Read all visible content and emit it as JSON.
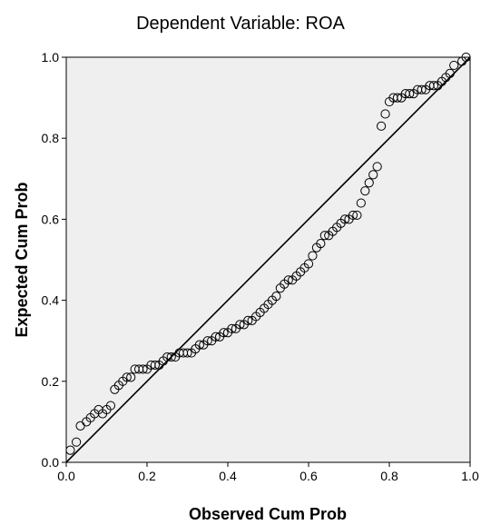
{
  "chart_data": {
    "type": "scatter",
    "title": "Dependent Variable: ROA",
    "xlabel": "Observed Cum Prob",
    "ylabel": "Expected Cum Prob",
    "xlim": [
      0.0,
      1.0
    ],
    "ylim": [
      0.0,
      1.0
    ],
    "x_ticks": [
      "0.0",
      "0.2",
      "0.4",
      "0.6",
      "0.8",
      "1.0"
    ],
    "y_ticks": [
      "0.0",
      "0.2",
      "0.4",
      "0.6",
      "0.8",
      "1.0"
    ],
    "grid": false,
    "reference_line": [
      [
        0,
        0
      ],
      [
        1,
        1
      ]
    ],
    "colors": {
      "plot_background": "#efefef",
      "marker_stroke": "#000000",
      "line": "#000000"
    },
    "points": [
      [
        0.01,
        0.03
      ],
      [
        0.025,
        0.05
      ],
      [
        0.035,
        0.09
      ],
      [
        0.05,
        0.1
      ],
      [
        0.06,
        0.11
      ],
      [
        0.07,
        0.12
      ],
      [
        0.08,
        0.13
      ],
      [
        0.09,
        0.12
      ],
      [
        0.1,
        0.13
      ],
      [
        0.11,
        0.14
      ],
      [
        0.12,
        0.18
      ],
      [
        0.13,
        0.19
      ],
      [
        0.14,
        0.2
      ],
      [
        0.15,
        0.21
      ],
      [
        0.16,
        0.21
      ],
      [
        0.17,
        0.23
      ],
      [
        0.18,
        0.23
      ],
      [
        0.19,
        0.23
      ],
      [
        0.2,
        0.23
      ],
      [
        0.21,
        0.24
      ],
      [
        0.22,
        0.24
      ],
      [
        0.23,
        0.24
      ],
      [
        0.24,
        0.25
      ],
      [
        0.25,
        0.26
      ],
      [
        0.26,
        0.26
      ],
      [
        0.27,
        0.26
      ],
      [
        0.28,
        0.27
      ],
      [
        0.29,
        0.27
      ],
      [
        0.3,
        0.27
      ],
      [
        0.31,
        0.27
      ],
      [
        0.32,
        0.28
      ],
      [
        0.33,
        0.29
      ],
      [
        0.34,
        0.29
      ],
      [
        0.35,
        0.3
      ],
      [
        0.36,
        0.3
      ],
      [
        0.37,
        0.31
      ],
      [
        0.38,
        0.31
      ],
      [
        0.39,
        0.32
      ],
      [
        0.4,
        0.32
      ],
      [
        0.41,
        0.33
      ],
      [
        0.42,
        0.33
      ],
      [
        0.43,
        0.34
      ],
      [
        0.44,
        0.34
      ],
      [
        0.45,
        0.35
      ],
      [
        0.46,
        0.35
      ],
      [
        0.47,
        0.36
      ],
      [
        0.48,
        0.37
      ],
      [
        0.49,
        0.38
      ],
      [
        0.5,
        0.39
      ],
      [
        0.51,
        0.4
      ],
      [
        0.52,
        0.41
      ],
      [
        0.53,
        0.43
      ],
      [
        0.54,
        0.44
      ],
      [
        0.55,
        0.45
      ],
      [
        0.56,
        0.45
      ],
      [
        0.57,
        0.46
      ],
      [
        0.58,
        0.47
      ],
      [
        0.59,
        0.48
      ],
      [
        0.6,
        0.49
      ],
      [
        0.61,
        0.51
      ],
      [
        0.62,
        0.53
      ],
      [
        0.63,
        0.54
      ],
      [
        0.64,
        0.56
      ],
      [
        0.65,
        0.56
      ],
      [
        0.66,
        0.57
      ],
      [
        0.67,
        0.58
      ],
      [
        0.68,
        0.59
      ],
      [
        0.69,
        0.6
      ],
      [
        0.7,
        0.6
      ],
      [
        0.71,
        0.61
      ],
      [
        0.72,
        0.61
      ],
      [
        0.73,
        0.64
      ],
      [
        0.74,
        0.67
      ],
      [
        0.75,
        0.69
      ],
      [
        0.76,
        0.71
      ],
      [
        0.77,
        0.73
      ],
      [
        0.78,
        0.83
      ],
      [
        0.79,
        0.86
      ],
      [
        0.8,
        0.89
      ],
      [
        0.81,
        0.9
      ],
      [
        0.82,
        0.9
      ],
      [
        0.83,
        0.9
      ],
      [
        0.84,
        0.91
      ],
      [
        0.85,
        0.91
      ],
      [
        0.86,
        0.91
      ],
      [
        0.87,
        0.92
      ],
      [
        0.88,
        0.92
      ],
      [
        0.89,
        0.92
      ],
      [
        0.9,
        0.93
      ],
      [
        0.91,
        0.93
      ],
      [
        0.92,
        0.93
      ],
      [
        0.93,
        0.94
      ],
      [
        0.94,
        0.95
      ],
      [
        0.95,
        0.96
      ],
      [
        0.96,
        0.98
      ],
      [
        0.98,
        0.99
      ],
      [
        0.99,
        1.0
      ]
    ]
  }
}
